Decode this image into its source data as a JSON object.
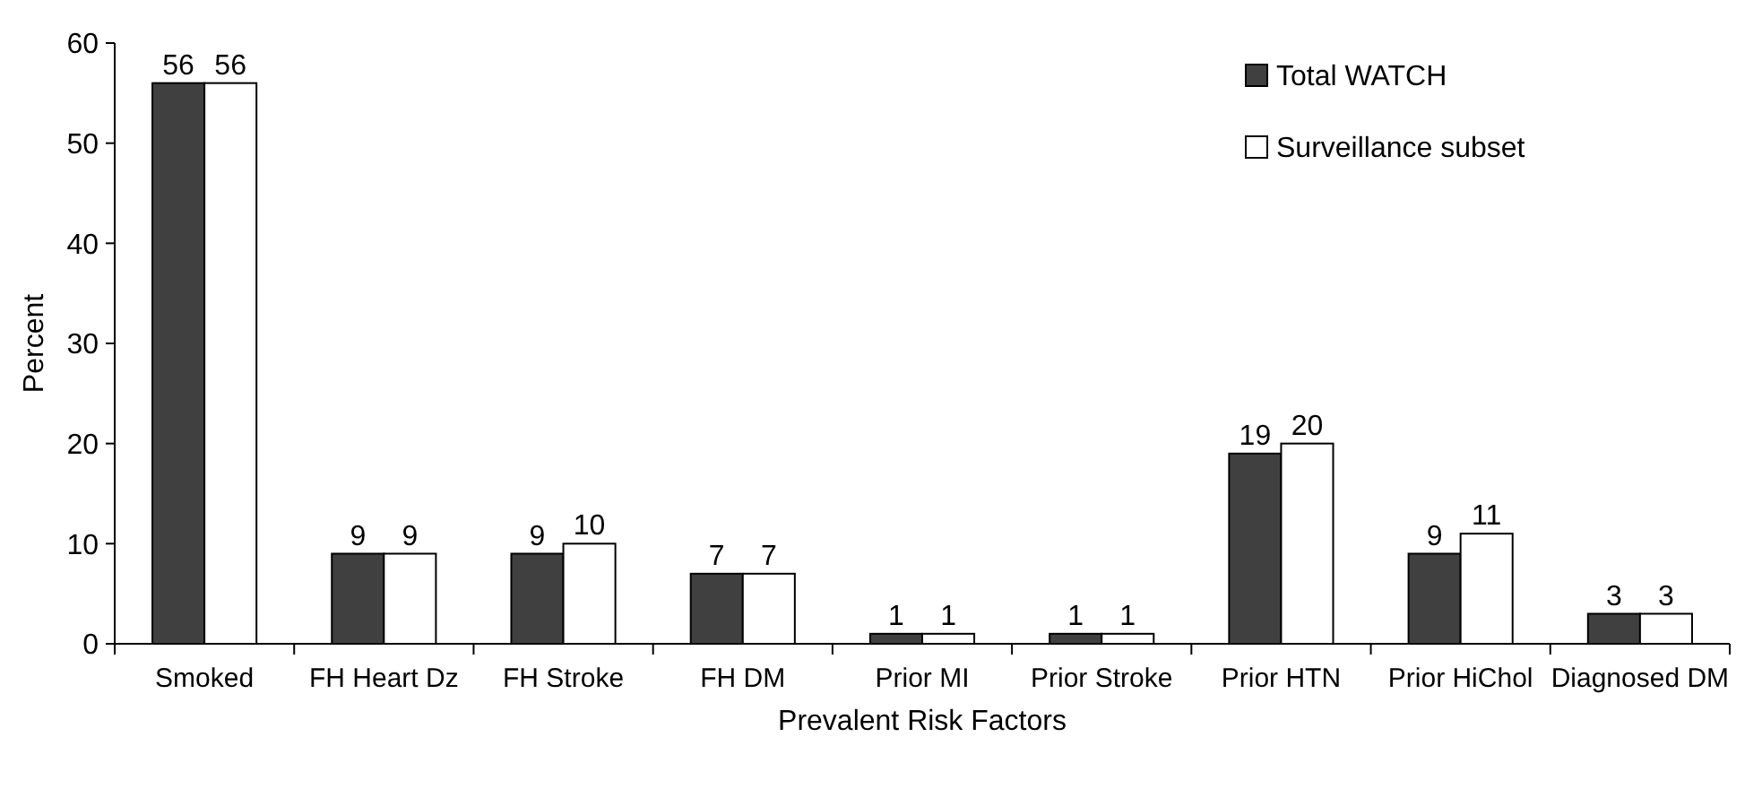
{
  "chart_data": {
    "type": "bar",
    "xlabel": "Prevalent Risk Factors",
    "ylabel": "Percent",
    "categories": [
      "Smoked",
      "FH Heart Dz",
      "FH Stroke",
      "FH DM",
      "Prior MI",
      "Prior Stroke",
      "Prior HTN",
      "Prior HiChol",
      "Diagnosed DM"
    ],
    "series": [
      {
        "name": "Total WATCH",
        "color": "#404040",
        "values": [
          56,
          9,
          9,
          7,
          1,
          1,
          19,
          9,
          3
        ]
      },
      {
        "name": "Surveillance subset",
        "color": "#ffffff",
        "values": [
          56,
          9,
          10,
          7,
          1,
          1,
          20,
          11,
          3
        ]
      }
    ],
    "ylim": [
      0,
      60
    ],
    "yticks": [
      0,
      10,
      20,
      30,
      40,
      50,
      60
    ],
    "grid": false,
    "legend": "top right",
    "data_labels": true
  }
}
